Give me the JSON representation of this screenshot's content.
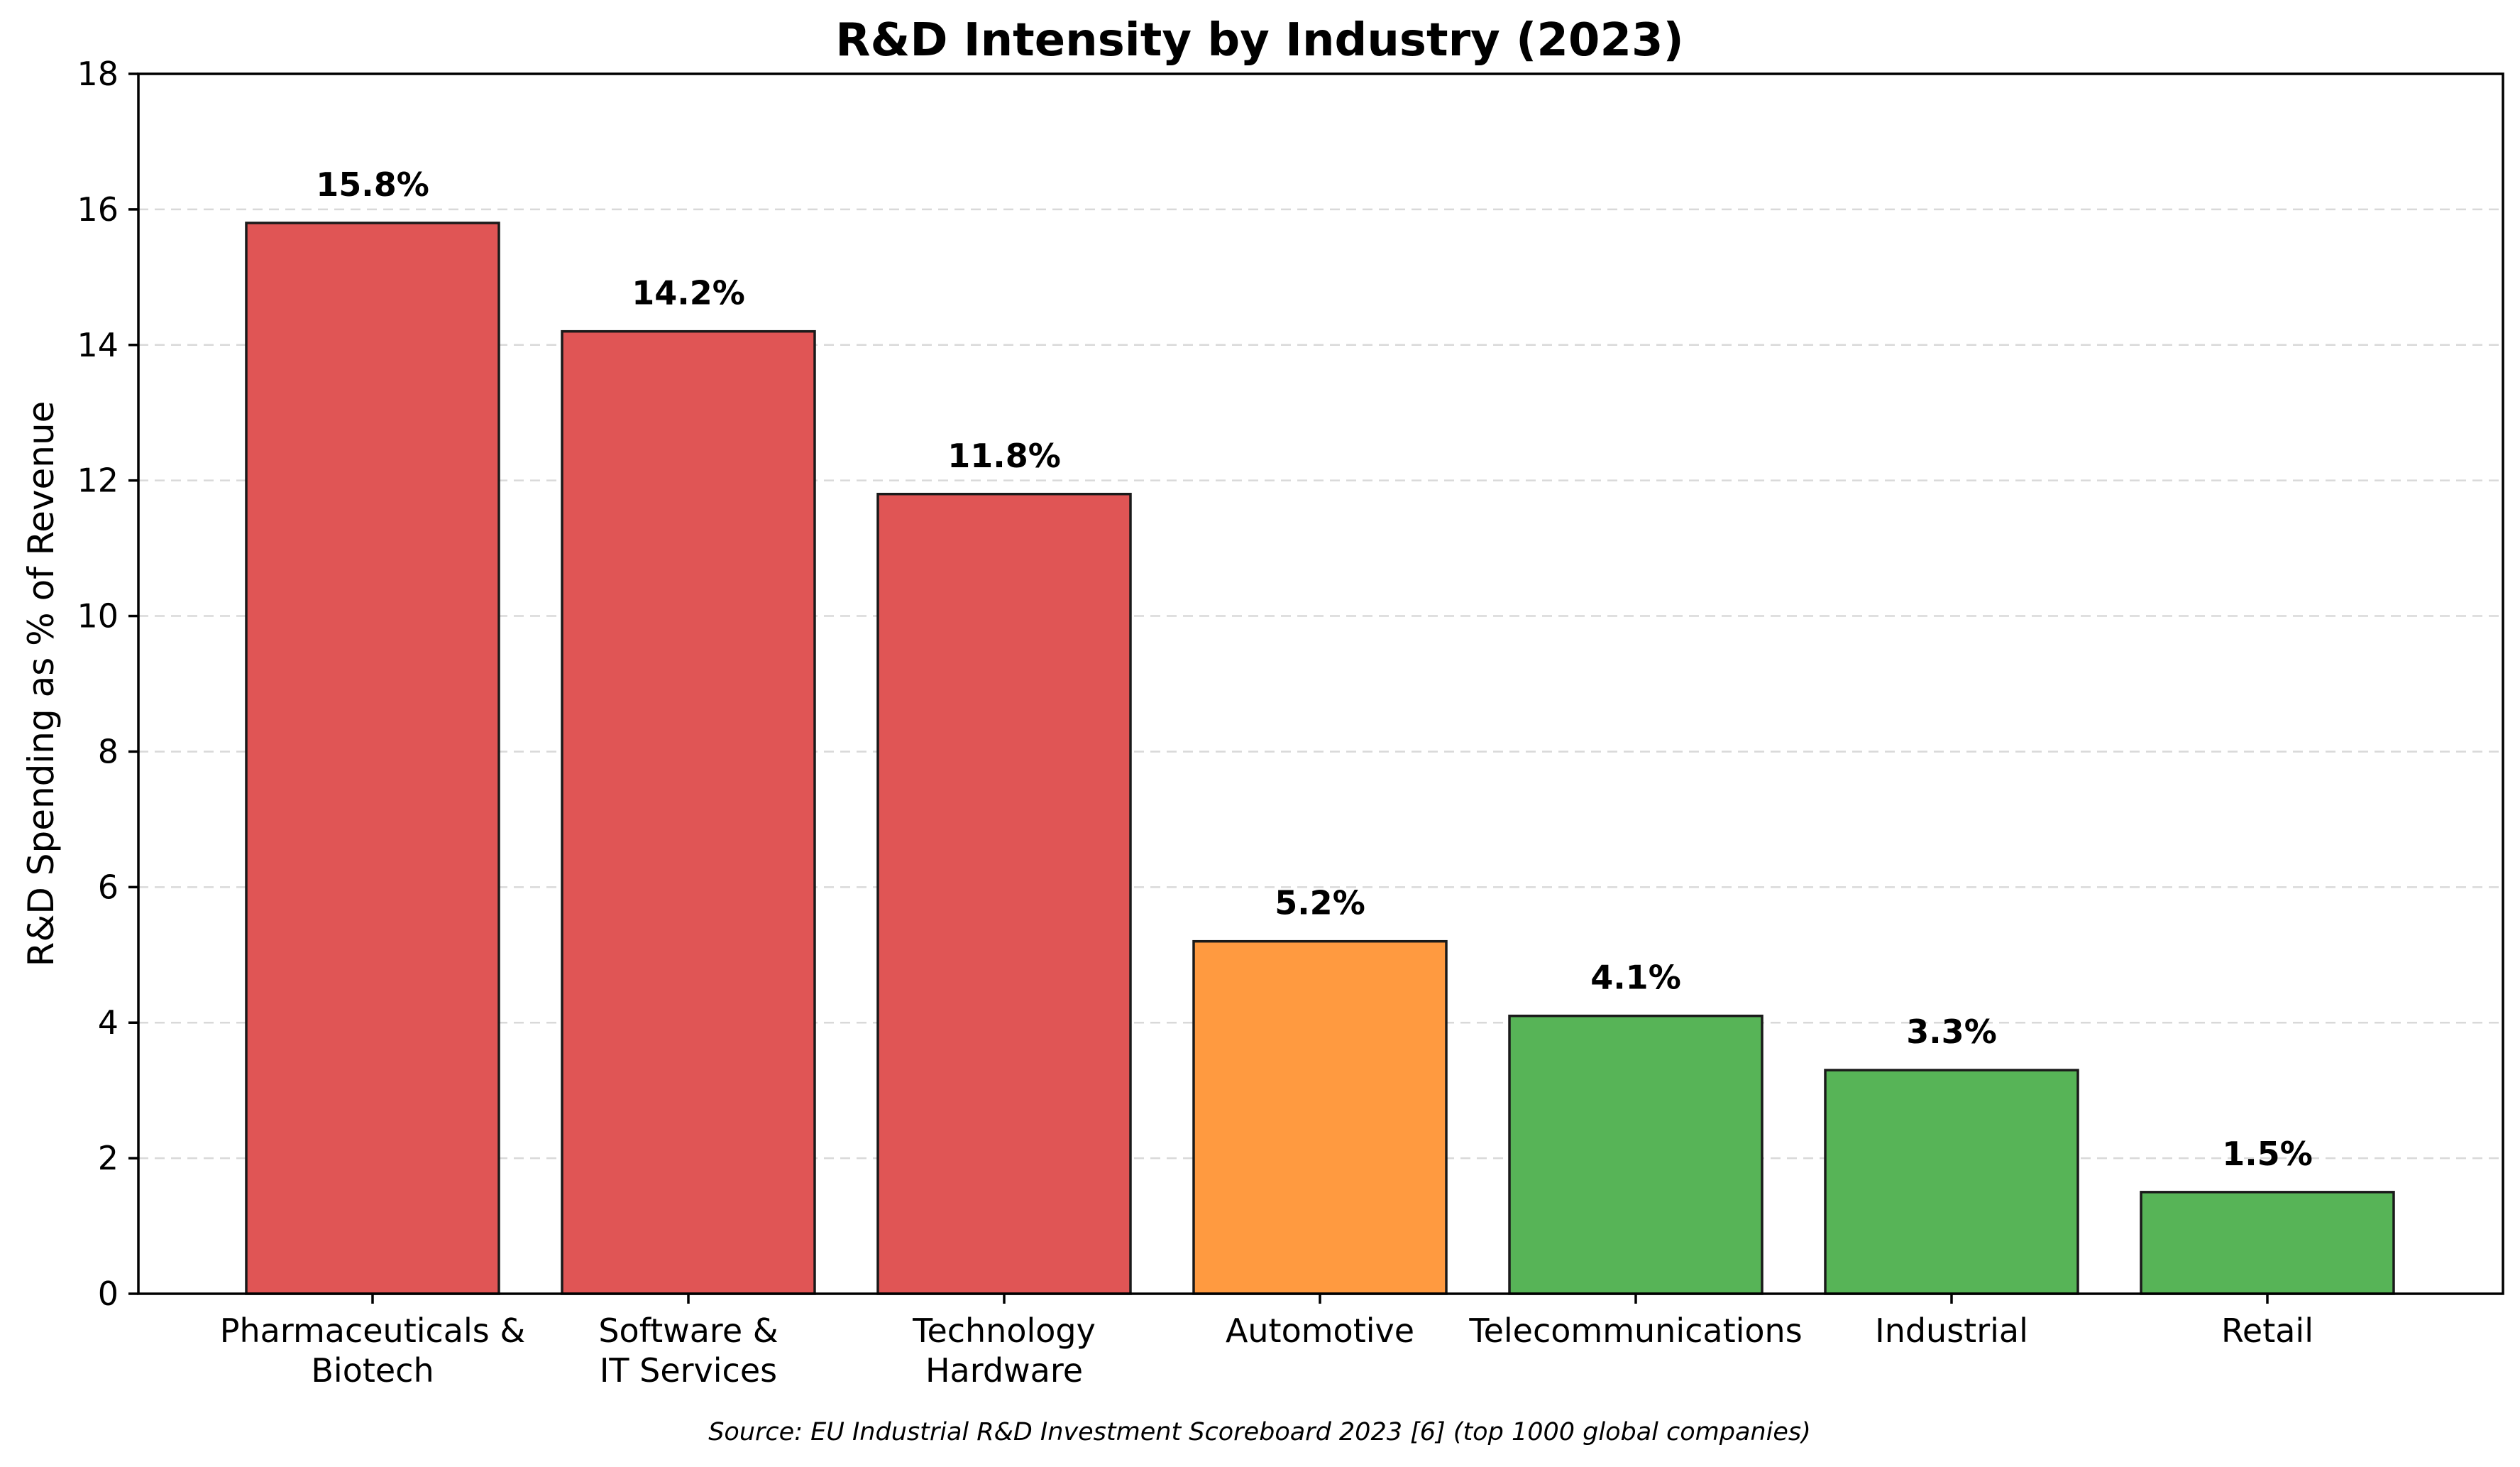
{
  "chart_data": {
    "type": "bar",
    "title": "R&D Intensity by Industry (2023)",
    "xlabel": "",
    "ylabel": "R&D Spending as % of Revenue",
    "ylim": [
      0,
      18
    ],
    "yticks": [
      0,
      2,
      4,
      6,
      8,
      10,
      12,
      14,
      16,
      18
    ],
    "grid": "y-dashed",
    "categories": [
      [
        "Pharmaceuticals &",
        "Biotech"
      ],
      [
        "Software &",
        "IT Services"
      ],
      [
        "Technology",
        "Hardware"
      ],
      [
        "Automotive"
      ],
      [
        "Telecommunications"
      ],
      [
        "Industrial"
      ],
      [
        "Retail"
      ]
    ],
    "values": [
      15.8,
      14.2,
      11.8,
      5.2,
      4.1,
      3.3,
      1.5
    ],
    "value_labels": [
      "15.8%",
      "14.2%",
      "11.8%",
      "5.2%",
      "4.1%",
      "3.3%",
      "1.5%"
    ],
    "bar_colors": [
      "#e05555",
      "#e05555",
      "#e05555",
      "#ff9a40",
      "#57b457",
      "#57b457",
      "#57b457"
    ],
    "source": "Source: EU Industrial R&D Investment Scoreboard 2023 [6] (top 1000 global companies)"
  }
}
